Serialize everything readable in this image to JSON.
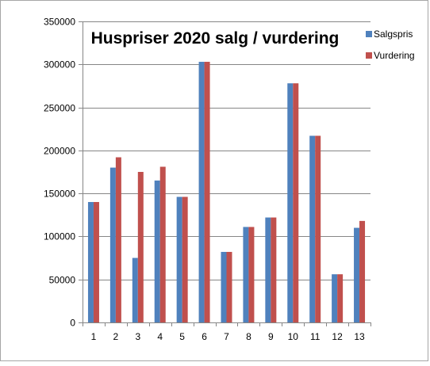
{
  "chart_data": {
    "type": "bar",
    "title": "Huspriser 2020 salg / vurdering",
    "xlabel": "",
    "ylabel": "",
    "categories": [
      "1",
      "2",
      "3",
      "4",
      "5",
      "6",
      "7",
      "8",
      "9",
      "10",
      "11",
      "12",
      "13"
    ],
    "series": [
      {
        "name": "Salgspris",
        "color": "#4f81bd",
        "values": [
          140000,
          180000,
          75000,
          165000,
          146000,
          303000,
          82000,
          111000,
          122000,
          278000,
          217000,
          56000,
          110000
        ]
      },
      {
        "name": "Vurdering",
        "color": "#c0504d",
        "values": [
          140000,
          192000,
          175000,
          181000,
          146000,
          303000,
          82000,
          111000,
          122000,
          278000,
          217000,
          56000,
          118000
        ]
      }
    ],
    "ylim": [
      0,
      350000
    ],
    "yticks": [
      0,
      50000,
      100000,
      150000,
      200000,
      250000,
      300000,
      350000
    ],
    "ytick_labels": [
      "0",
      "50000",
      "100000",
      "150000",
      "200000",
      "250000",
      "300000",
      "350000"
    ],
    "grid": true,
    "legend_position": "right"
  }
}
